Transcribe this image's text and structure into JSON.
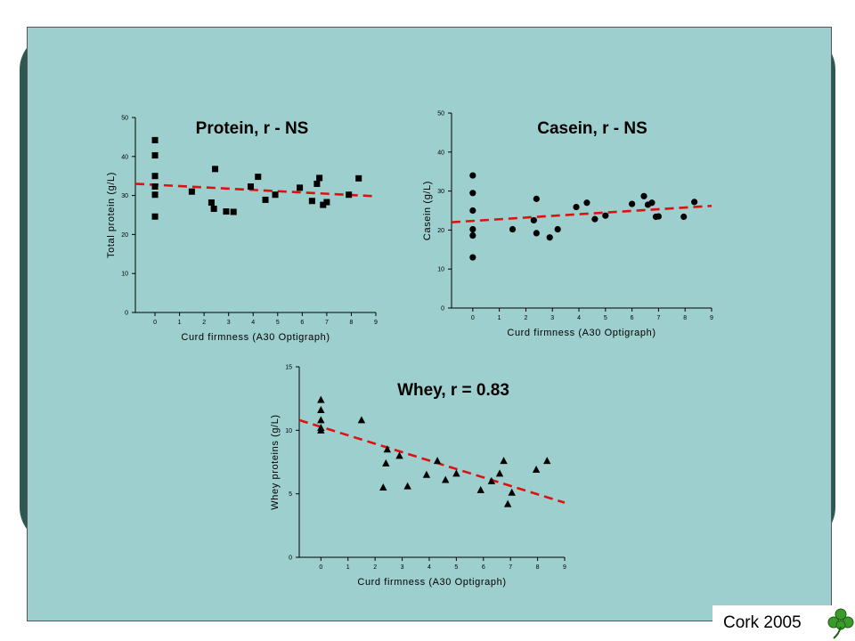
{
  "footer": {
    "text": "Cork 2005",
    "icon": "shamrock-icon",
    "icon_color": "#3a9a2a"
  },
  "colors": {
    "slide_background": "#2f5751",
    "panel_background": "#9ccfcd",
    "trend_line": "#e01010",
    "markers": "#000000"
  },
  "chart_data": [
    {
      "type": "scatter",
      "title": "Protein, r - NS",
      "xlabel": "Curd firmness (A30 Optigraph)",
      "ylabel": "Total protein (g/L)",
      "xlim": [
        -0.8,
        9
      ],
      "ylim": [
        0,
        50
      ],
      "xticks": [
        0,
        1,
        2,
        3,
        4,
        5,
        6,
        7,
        8,
        9
      ],
      "yticks": [
        0,
        10,
        20,
        30,
        40,
        50
      ],
      "marker": "square",
      "grid": false,
      "points": [
        [
          0,
          44.2
        ],
        [
          0,
          40.3
        ],
        [
          0,
          35.0
        ],
        [
          0,
          32.3
        ],
        [
          0,
          30.2
        ],
        [
          0,
          24.6
        ],
        [
          1.5,
          31.0
        ],
        [
          2.3,
          28.2
        ],
        [
          2.4,
          26.6
        ],
        [
          2.45,
          36.8
        ],
        [
          2.9,
          25.9
        ],
        [
          3.2,
          25.8
        ],
        [
          3.9,
          32.3
        ],
        [
          4.2,
          34.8
        ],
        [
          4.5,
          28.9
        ],
        [
          4.9,
          30.2
        ],
        [
          5.9,
          32.0
        ],
        [
          6.4,
          28.6
        ],
        [
          6.6,
          33.0
        ],
        [
          6.7,
          34.5
        ],
        [
          6.85,
          27.6
        ],
        [
          7.0,
          28.3
        ],
        [
          7.9,
          30.2
        ],
        [
          8.3,
          34.4
        ]
      ],
      "trend": {
        "x0": -0.8,
        "y0": 33.0,
        "x1": 9,
        "y1": 29.8
      }
    },
    {
      "type": "scatter",
      "title": "Casein, r - NS",
      "xlabel": "Curd firmness (A30 Optigraph)",
      "ylabel": "Casein (g/L)",
      "xlim": [
        -0.8,
        9
      ],
      "ylim": [
        0,
        50
      ],
      "xticks": [
        0,
        1,
        2,
        3,
        4,
        5,
        6,
        7,
        8,
        9
      ],
      "yticks": [
        0,
        10,
        20,
        30,
        40,
        50
      ],
      "marker": "circle",
      "grid": false,
      "points": [
        [
          0,
          34.0
        ],
        [
          0,
          29.5
        ],
        [
          0,
          25.0
        ],
        [
          0,
          20.2
        ],
        [
          0,
          18.6
        ],
        [
          0,
          13.0
        ],
        [
          1.5,
          20.2
        ],
        [
          2.3,
          22.5
        ],
        [
          2.4,
          28.0
        ],
        [
          2.4,
          19.2
        ],
        [
          2.9,
          18.1
        ],
        [
          3.2,
          20.2
        ],
        [
          3.9,
          25.9
        ],
        [
          4.3,
          27.0
        ],
        [
          4.6,
          22.8
        ],
        [
          5.0,
          23.7
        ],
        [
          6.0,
          26.7
        ],
        [
          6.45,
          28.7
        ],
        [
          6.6,
          26.5
        ],
        [
          6.75,
          27.0
        ],
        [
          6.9,
          23.4
        ],
        [
          7.0,
          23.5
        ],
        [
          7.95,
          23.4
        ],
        [
          8.35,
          27.2
        ]
      ],
      "trend": {
        "x0": -0.8,
        "y0": 22.0,
        "x1": 9,
        "y1": 26.2
      }
    },
    {
      "type": "scatter",
      "title": "Whey, r = 0.83",
      "xlabel": "Curd firmness (A30 Optigraph)",
      "ylabel": "Whey proteins (g/L)",
      "xlim": [
        -0.8,
        9
      ],
      "ylim": [
        0,
        15
      ],
      "xticks": [
        0,
        1,
        2,
        3,
        4,
        5,
        6,
        7,
        8,
        9
      ],
      "yticks": [
        0,
        5,
        10,
        15
      ],
      "marker": "triangle",
      "grid": false,
      "points": [
        [
          0,
          12.4
        ],
        [
          0,
          11.6
        ],
        [
          0,
          10.8
        ],
        [
          0,
          10.2
        ],
        [
          0,
          10.0
        ],
        [
          1.5,
          10.8
        ],
        [
          2.3,
          5.5
        ],
        [
          2.4,
          7.4
        ],
        [
          2.45,
          8.5
        ],
        [
          2.9,
          8.0
        ],
        [
          3.2,
          5.6
        ],
        [
          3.9,
          6.5
        ],
        [
          4.3,
          7.6
        ],
        [
          4.6,
          6.1
        ],
        [
          5.0,
          6.6
        ],
        [
          5.9,
          5.3
        ],
        [
          6.3,
          6.0
        ],
        [
          6.6,
          6.6
        ],
        [
          6.75,
          7.6
        ],
        [
          6.9,
          4.2
        ],
        [
          7.05,
          5.1
        ],
        [
          7.95,
          6.9
        ],
        [
          8.35,
          7.6
        ]
      ],
      "trend": {
        "x0": -0.8,
        "y0": 10.8,
        "x1": 9,
        "y1": 4.3
      }
    }
  ]
}
